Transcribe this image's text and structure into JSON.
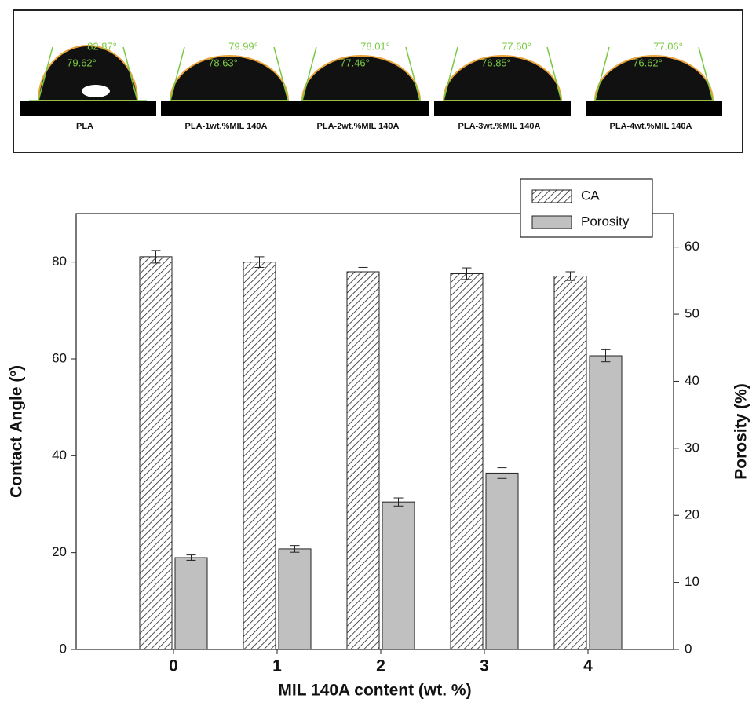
{
  "droplet_panel": {
    "samples": [
      {
        "label": "PLA",
        "angles": [
          "82.87°",
          "79.62°"
        ]
      },
      {
        "label": "PLA-1wt.%MIL 140A",
        "angles": [
          "79.99°",
          "78.63°"
        ]
      },
      {
        "label": "PLA-2wt.%MIL 140A",
        "angles": [
          "78.01°",
          "77.46°"
        ]
      },
      {
        "label": "PLA-3wt.%MIL 140A",
        "angles": [
          "77.60°",
          "76.85°"
        ]
      },
      {
        "label": "PLA-4wt.%MIL 140A",
        "angles": [
          "77.06°",
          "76.62°"
        ]
      }
    ]
  },
  "chart_data": {
    "type": "bar",
    "x_label": "MIL 140A content (wt. %)",
    "y_label": "Contact Angle (º)",
    "y2_label": "Porosity (%)",
    "categories": [
      "0",
      "1",
      "2",
      "3",
      "4"
    ],
    "series": [
      {
        "name": "CA",
        "color": "#ffffff",
        "hatch": true,
        "values": [
          81.1,
          80.0,
          78.0,
          77.6,
          77.1
        ],
        "errors": [
          1.3,
          1.1,
          0.9,
          1.2,
          0.9
        ]
      },
      {
        "name": "Porosity",
        "color": "#c0c0c0",
        "hatch": false,
        "axis": "y2",
        "values": [
          13.7,
          15.0,
          22.0,
          26.3,
          43.8
        ],
        "errors": [
          0.4,
          0.5,
          0.6,
          0.8,
          0.9
        ]
      }
    ],
    "ylim": [
      0,
      90
    ],
    "yticks": [
      0,
      20,
      40,
      60,
      80
    ],
    "y2lim": [
      0,
      65
    ],
    "y2ticks": [
      0,
      10,
      20,
      30,
      40,
      50,
      60
    ],
    "legend": "top-right",
    "grid": false
  }
}
